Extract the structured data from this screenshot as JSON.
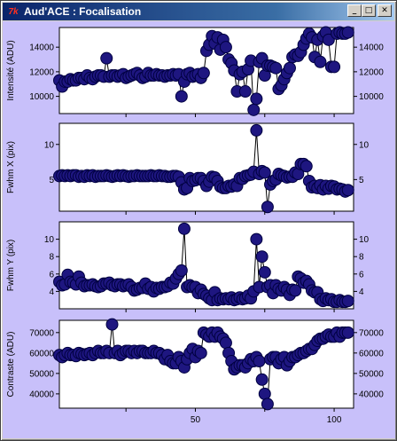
{
  "window": {
    "title": "Aud'ACE : Focalisation",
    "icon_text": "7k",
    "buttons": {
      "minimize": "_",
      "maximize": "□",
      "close": "✕"
    }
  },
  "colors": {
    "panel_bg": "#c8c0fa",
    "plot_bg": "#ffffff",
    "marker": "#1e1680",
    "marker_edge": "#000040",
    "title_bar": "#0a246a"
  },
  "chart_data": [
    {
      "type": "scatter",
      "ylabel": "Intensité (ADU)",
      "ylim": [
        8600,
        15600
      ],
      "yticks": [
        10000,
        12000,
        14000
      ],
      "xlim": [
        1,
        107
      ],
      "x_start": 1,
      "values": [
        11300,
        10800,
        11200,
        11200,
        11400,
        11300,
        11300,
        11500,
        11500,
        11400,
        11700,
        11500,
        11400,
        11600,
        11700,
        11700,
        11600,
        13100,
        11600,
        11700,
        11700,
        11600,
        11700,
        11800,
        11500,
        11600,
        11700,
        11800,
        11900,
        11700,
        11500,
        11600,
        11900,
        11700,
        11700,
        11800,
        11700,
        11700,
        11600,
        11700,
        11700,
        11800,
        11700,
        11800,
        10000,
        11200,
        11800,
        11900,
        11600,
        11700,
        11800,
        11500,
        11900,
        13700,
        14200,
        14900,
        14300,
        14800,
        13800,
        14600,
        14000,
        13000,
        12700,
        12100,
        10400,
        11800,
        12000,
        10400,
        12200,
        12900,
        8900,
        9800,
        12800,
        13100,
        11700,
        12500,
        12500,
        12400,
        12300,
        10600,
        10900,
        11400,
        11900,
        12300,
        13200,
        13400,
        13300,
        13600,
        14200,
        14700,
        15100,
        14800,
        13200,
        14600,
        12800,
        14900,
        15200,
        14600,
        12400,
        12400,
        15100,
        15200,
        15100,
        15100,
        15200
      ]
    },
    {
      "type": "scatter",
      "ylabel": "Fwhm X (pix)",
      "ylim": [
        0.5,
        13
      ],
      "yticks": [
        5,
        10
      ],
      "xlim": [
        1,
        107
      ],
      "x_start": 1,
      "values": [
        5.5,
        5.6,
        5.5,
        5.6,
        5.5,
        5.6,
        5.6,
        5.4,
        5.5,
        5.4,
        5.6,
        5.5,
        5.6,
        5.4,
        5.5,
        5.5,
        5.5,
        5.6,
        5.5,
        5.4,
        5.5,
        5.6,
        5.5,
        5.6,
        5.5,
        5.4,
        5.5,
        5.5,
        5.6,
        5.5,
        5.5,
        5.5,
        5.5,
        5.6,
        5.5,
        5.5,
        5.6,
        5.5,
        5.5,
        5.4,
        5.4,
        5.5,
        5.5,
        5.4,
        4.6,
        3.6,
        3.8,
        5.2,
        4.8,
        4.9,
        5.2,
        5.2,
        4.8,
        4.1,
        4.7,
        5.4,
        5.3,
        4.8,
        4.0,
        3.8,
        3.8,
        4.1,
        4.0,
        4.3,
        4.1,
        5.2,
        5.1,
        5.5,
        5.6,
        5.7,
        6.1,
        12.0,
        5.8,
        6.2,
        6.0,
        1.1,
        4.3,
        4.8,
        5.0,
        5.8,
        5.6,
        5.5,
        5.3,
        5.4,
        5.4,
        6.0,
        5.8,
        7.2,
        7.2,
        6.9,
        4.8,
        3.9,
        4.1,
        3.8,
        4.2,
        3.6,
        4.1,
        3.7,
        4.1,
        4.0,
        3.6,
        3.7,
        3.6,
        3.3,
        3.5
      ]
    },
    {
      "type": "scatter",
      "ylabel": "Fwhm Y (pix)",
      "ylim": [
        2,
        12
      ],
      "yticks": [
        4,
        6,
        8,
        10
      ],
      "xlim": [
        1,
        107
      ],
      "x_start": 1,
      "values": [
        5.1,
        4.7,
        4.8,
        5.9,
        5.1,
        5.0,
        4.8,
        5.7,
        5.0,
        4.6,
        4.7,
        4.7,
        4.8,
        4.6,
        4.5,
        4.6,
        4.9,
        4.9,
        5.0,
        4.7,
        4.6,
        4.8,
        4.8,
        4.6,
        4.7,
        4.8,
        4.5,
        4.1,
        4.2,
        4.4,
        4.4,
        4.9,
        4.3,
        4.5,
        4.0,
        4.4,
        4.3,
        4.5,
        4.5,
        4.6,
        5.0,
        4.9,
        5.5,
        6.0,
        6.4,
        11.2,
        4.5,
        4.7,
        4.5,
        4.5,
        3.8,
        4.2,
        3.7,
        3.5,
        3.2,
        3.0,
        3.9,
        3.0,
        3.2,
        3.1,
        3.2,
        3.1,
        3.3,
        3.0,
        3.1,
        3.3,
        3.1,
        3.2,
        3.5,
        3.2,
        4.0,
        10.0,
        4.5,
        8.0,
        6.2,
        4.5,
        4.7,
        3.8,
        4.7,
        4.3,
        4.1,
        4.5,
        4.2,
        3.6,
        4.2,
        4.1,
        5.7,
        5.5,
        5.0,
        5.2,
        4.8,
        4.1,
        3.9,
        3.9,
        3.1,
        2.9,
        3.2,
        3.0,
        3.1,
        2.8,
        2.8,
        3.0,
        2.8,
        2.8,
        2.9
      ]
    },
    {
      "type": "scatter",
      "ylabel": "Contraste (ADU)",
      "ylim": [
        33000,
        76000
      ],
      "yticks": [
        40000,
        50000,
        60000,
        70000
      ],
      "xlim": [
        1,
        107
      ],
      "x_start": 1,
      "values": [
        59000,
        58000,
        59000,
        60000,
        59000,
        59000,
        58500,
        60000,
        59500,
        59000,
        59500,
        60000,
        59000,
        60000,
        61000,
        60000,
        60000,
        61000,
        60000,
        74000,
        60000,
        61000,
        59000,
        60000,
        61000,
        61000,
        60000,
        61000,
        60000,
        61000,
        61000,
        60000,
        60000,
        60000,
        61000,
        60000,
        60000,
        59000,
        57000,
        59000,
        56000,
        55000,
        55000,
        58000,
        56000,
        53000,
        57000,
        60000,
        62000,
        58000,
        61000,
        60000,
        70000,
        69000,
        68000,
        70000,
        68000,
        70000,
        68000,
        67000,
        65000,
        60000,
        56000,
        52000,
        53000,
        54000,
        54000,
        53000,
        55000,
        57000,
        56000,
        58000,
        56000,
        47000,
        40000,
        35000,
        57000,
        58000,
        58000,
        55000,
        57000,
        58000,
        54000,
        56000,
        58000,
        58000,
        59000,
        60000,
        60000,
        61000,
        62000,
        62000,
        64000,
        66000,
        67000,
        67000,
        68000,
        69000,
        68000,
        68000,
        70000,
        68000,
        70000,
        70000,
        70000
      ]
    }
  ],
  "shared_x_axis": {
    "ticks": [
      50,
      100
    ],
    "minor_ticks": [
      25,
      75
    ]
  }
}
